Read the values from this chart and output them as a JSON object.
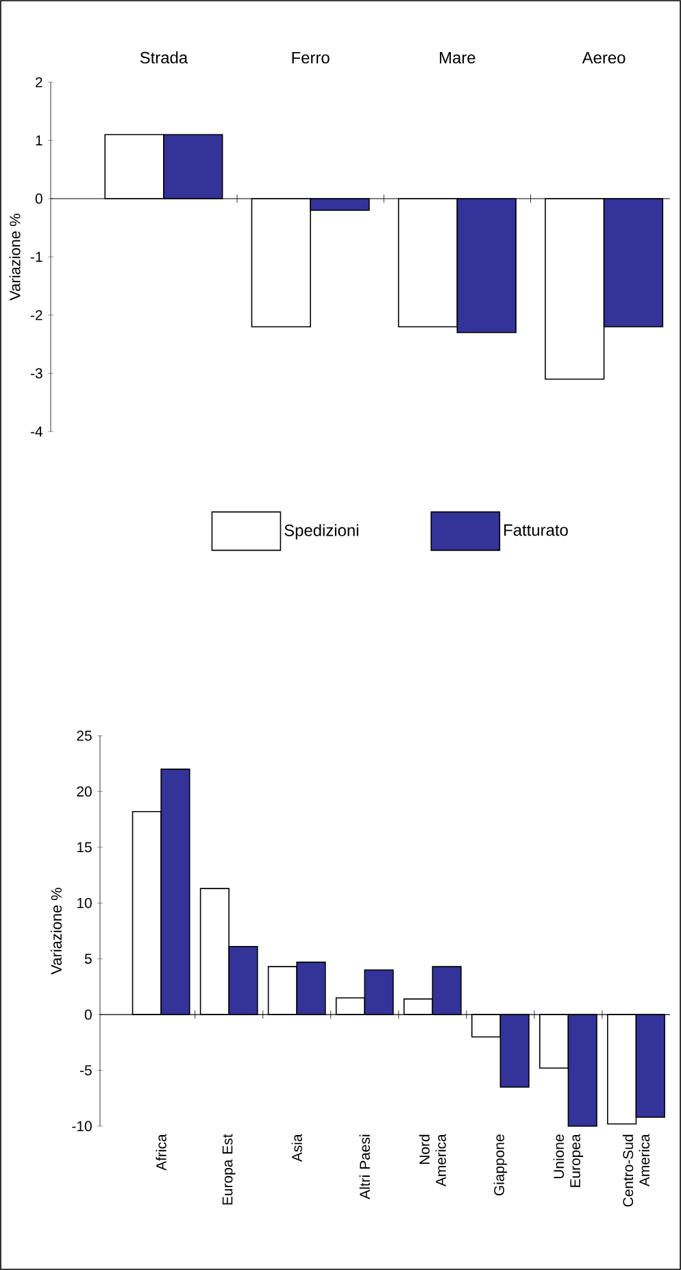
{
  "chart_data": [
    {
      "type": "bar",
      "ylabel": "Variazione %",
      "categories": [
        "Strada",
        "Ferro",
        "Mare",
        "Aereo"
      ],
      "series": [
        {
          "name": "Spedizioni",
          "color": "#ffffff",
          "values": [
            1.1,
            -2.2,
            -2.2,
            -3.1
          ]
        },
        {
          "name": "Fatturato",
          "color": "#333399",
          "values": [
            1.1,
            -0.2,
            -2.3,
            -2.2
          ]
        }
      ],
      "ylim": [
        -4,
        2
      ],
      "yticks": [
        -4,
        -3,
        -2,
        -1,
        0,
        1,
        2
      ],
      "legend": "bottom"
    },
    {
      "type": "bar",
      "ylabel": "Variazione %",
      "categories": [
        "Africa",
        "Europa Est",
        "Asia",
        "Altri Paesi",
        "Nord America",
        "Giappone",
        "Unione Europea",
        "Centro-Sud America"
      ],
      "series": [
        {
          "color": "#ffffff",
          "values": [
            18.2,
            11.3,
            4.3,
            1.5,
            1.4,
            -2.0,
            -4.8,
            -9.8
          ]
        },
        {
          "color": "#333399",
          "values": [
            22.0,
            6.1,
            4.7,
            4.0,
            4.3,
            -6.5,
            -10.0,
            -9.2
          ]
        }
      ],
      "ylim": [
        -10,
        25
      ],
      "yticks": [
        -10,
        -5,
        0,
        5,
        10,
        15,
        20,
        25
      ]
    }
  ]
}
